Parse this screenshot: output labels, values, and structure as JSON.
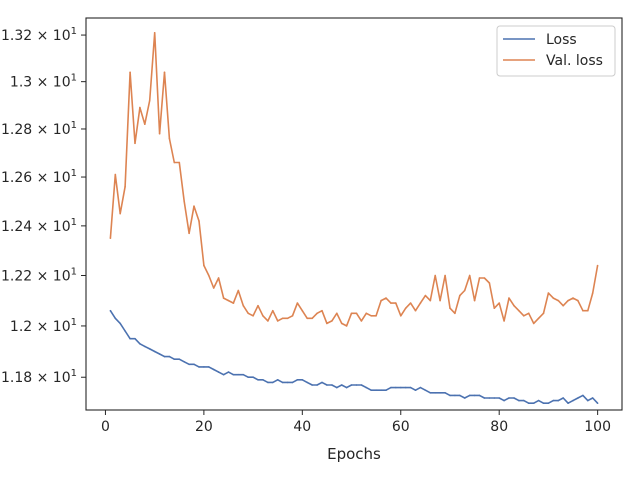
{
  "chart_data": {
    "type": "line",
    "xlabel": "Epochs",
    "ylabel": "",
    "title": "",
    "xlim": [
      -3.95,
      104.95
    ],
    "ylim": [
      11.674,
      13.274
    ],
    "x_ticks": [
      0,
      20,
      40,
      60,
      80,
      100
    ],
    "x_tick_labels": [
      "0",
      "20",
      "40",
      "60",
      "80",
      "100"
    ],
    "y_ticks": [
      11.8,
      12.0,
      12.2,
      12.4,
      12.6,
      12.8,
      13.0,
      13.2
    ],
    "y_tick_labels": [
      "1.18",
      "1.2",
      "1.22",
      "1.24",
      "1.26",
      "1.28",
      "1.3",
      "1.32"
    ],
    "y_tick_exponent": "1",
    "y_scale": "log",
    "grid": false,
    "legend_position": "upper right",
    "x": [
      1,
      2,
      3,
      4,
      5,
      6,
      7,
      8,
      9,
      10,
      11,
      12,
      13,
      14,
      15,
      16,
      17,
      18,
      19,
      20,
      21,
      22,
      23,
      24,
      25,
      26,
      27,
      28,
      29,
      30,
      31,
      32,
      33,
      34,
      35,
      36,
      37,
      38,
      39,
      40,
      41,
      42,
      43,
      44,
      45,
      46,
      47,
      48,
      49,
      50,
      51,
      52,
      53,
      54,
      55,
      56,
      57,
      58,
      59,
      60,
      61,
      62,
      63,
      64,
      65,
      66,
      67,
      68,
      69,
      70,
      71,
      72,
      73,
      74,
      75,
      76,
      77,
      78,
      79,
      80,
      81,
      82,
      83,
      84,
      85,
      86,
      87,
      88,
      89,
      90,
      91,
      92,
      93,
      94,
      95,
      96,
      97,
      98,
      99,
      100
    ],
    "series": [
      {
        "name": "Loss",
        "color": "#4c72b0",
        "values": [
          12.06,
          12.03,
          12.01,
          11.98,
          11.95,
          11.95,
          11.93,
          11.92,
          11.91,
          11.9,
          11.89,
          11.88,
          11.88,
          11.87,
          11.87,
          11.86,
          11.85,
          11.85,
          11.84,
          11.84,
          11.84,
          11.83,
          11.82,
          11.81,
          11.82,
          11.81,
          11.81,
          11.81,
          11.8,
          11.8,
          11.79,
          11.79,
          11.78,
          11.78,
          11.79,
          11.78,
          11.78,
          11.78,
          11.79,
          11.79,
          11.78,
          11.77,
          11.77,
          11.78,
          11.77,
          11.77,
          11.76,
          11.77,
          11.76,
          11.77,
          11.77,
          11.77,
          11.76,
          11.75,
          11.75,
          11.75,
          11.75,
          11.76,
          11.76,
          11.76,
          11.76,
          11.76,
          11.75,
          11.76,
          11.75,
          11.74,
          11.74,
          11.74,
          11.74,
          11.73,
          11.73,
          11.73,
          11.72,
          11.73,
          11.73,
          11.73,
          11.72,
          11.72,
          11.72,
          11.72,
          11.71,
          11.72,
          11.72,
          11.71,
          11.71,
          11.7,
          11.7,
          11.71,
          11.7,
          11.7,
          11.71,
          11.71,
          11.72,
          11.7,
          11.71,
          11.72,
          11.73,
          11.71,
          11.72,
          11.7
        ]
      },
      {
        "name": "Val. loss",
        "color": "#dd8452",
        "values": [
          12.35,
          12.61,
          12.45,
          12.56,
          13.04,
          12.74,
          12.89,
          12.82,
          12.92,
          13.21,
          12.78,
          13.04,
          12.76,
          12.66,
          12.66,
          12.5,
          12.37,
          12.48,
          12.42,
          12.24,
          12.2,
          12.15,
          12.19,
          12.11,
          12.1,
          12.09,
          12.14,
          12.08,
          12.05,
          12.04,
          12.08,
          12.04,
          12.02,
          12.06,
          12.02,
          12.03,
          12.03,
          12.04,
          12.09,
          12.06,
          12.03,
          12.03,
          12.05,
          12.06,
          12.01,
          12.02,
          12.05,
          12.01,
          12.0,
          12.05,
          12.05,
          12.02,
          12.05,
          12.04,
          12.04,
          12.1,
          12.11,
          12.09,
          12.09,
          12.04,
          12.07,
          12.09,
          12.06,
          12.09,
          12.12,
          12.1,
          12.2,
          12.1,
          12.2,
          12.07,
          12.05,
          12.12,
          12.14,
          12.2,
          12.1,
          12.19,
          12.19,
          12.17,
          12.07,
          12.09,
          12.02,
          12.11,
          12.08,
          12.06,
          12.04,
          12.05,
          12.01,
          12.03,
          12.05,
          12.13,
          12.11,
          12.1,
          12.08,
          12.1,
          12.11,
          12.1,
          12.06,
          12.06,
          12.13,
          12.24
        ]
      }
    ]
  }
}
